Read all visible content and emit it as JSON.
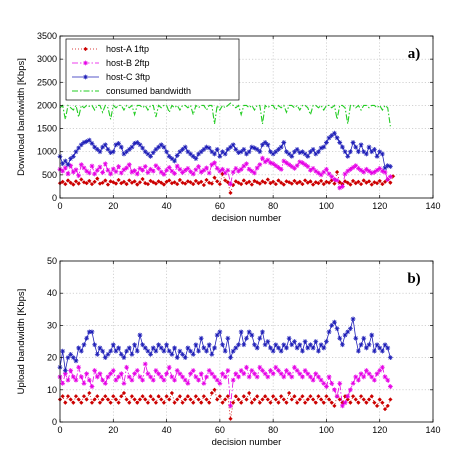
{
  "chart_data": [
    {
      "type": "line",
      "panel_label": "a)",
      "xlabel": "decision number",
      "ylabel": "Download bandwidth [Kbps]",
      "xlim": [
        0,
        140
      ],
      "ylim": [
        0,
        3500
      ],
      "xticks": [
        0,
        20,
        40,
        60,
        80,
        100,
        120,
        140
      ],
      "yticks": [
        0,
        500,
        1000,
        1500,
        2000,
        2500,
        3000,
        3500
      ],
      "grid": true,
      "legend_position": "top-left",
      "series": [
        {
          "name": "host-A 1ftp",
          "color": "#cc0000",
          "style": "dotted",
          "marker": "diamond",
          "values": [
            320,
            350,
            300,
            380,
            330,
            290,
            360,
            310,
            400,
            340,
            320,
            370,
            300,
            350,
            420,
            310,
            330,
            380,
            290,
            360,
            340,
            310,
            390,
            320,
            350,
            300,
            380,
            330,
            360,
            290,
            340,
            410,
            320,
            300,
            370,
            340,
            310,
            360,
            330,
            290,
            350,
            380,
            320,
            340,
            300,
            390,
            330,
            310,
            360,
            340,
            300,
            370,
            320,
            350,
            280,
            390,
            330,
            310,
            440,
            360,
            300,
            520,
            380,
            340,
            110,
            280,
            360,
            330,
            300,
            380,
            320,
            350,
            290,
            370,
            340,
            310,
            360,
            330,
            400,
            320,
            350,
            300,
            380,
            330,
            290,
            360,
            340,
            310,
            370,
            320,
            350,
            300,
            380,
            330,
            360,
            290,
            340,
            320,
            370,
            300,
            350,
            330,
            380,
            310,
            560,
            340,
            300,
            360,
            330,
            290,
            370,
            320,
            350,
            300,
            380,
            330,
            360,
            290,
            340,
            320,
            370,
            300,
            350,
            400,
            330,
            470
          ]
        },
        {
          "name": "host-B 2ftp",
          "color": "#e600e6",
          "style": "dashdot",
          "marker": "star",
          "values": [
            620,
            580,
            650,
            520,
            700,
            560,
            610,
            480,
            720,
            650,
            580,
            540,
            690,
            520,
            600,
            670,
            550,
            740,
            600,
            520,
            630,
            570,
            680,
            540,
            610,
            650,
            720,
            560,
            590,
            520,
            640,
            600,
            680,
            550,
            620,
            580,
            700,
            640,
            560,
            510,
            600,
            660,
            580,
            530,
            690,
            620,
            550,
            600,
            640,
            570,
            520,
            610,
            680,
            560,
            600,
            650,
            540,
            720,
            760,
            640,
            580,
            620,
            540,
            600,
            300,
            560,
            640,
            580,
            620,
            690,
            740,
            620,
            580,
            540,
            650,
            720,
            860,
            780,
            820,
            760,
            740,
            700,
            660,
            620,
            800,
            760,
            720,
            680,
            640,
            700,
            780,
            760,
            720,
            680,
            600,
            640,
            580,
            540,
            500,
            560,
            620,
            520,
            460,
            400,
            380,
            220,
            250,
            520,
            580,
            620,
            660,
            700,
            640,
            600,
            560,
            620,
            580,
            540,
            560,
            600,
            640,
            580,
            560,
            400,
            460
          ]
        },
        {
          "name": "host-C 3ftp",
          "color": "#1f1fb8",
          "style": "solid",
          "marker": "star",
          "values": [
            900,
            740,
            800,
            720,
            850,
            900,
            1000,
            1080,
            1150,
            1200,
            1220,
            1250,
            1180,
            1100,
            1050,
            1000,
            1100,
            1150,
            1050,
            980,
            1000,
            1150,
            1180,
            1100,
            950,
            1000,
            1050,
            1100,
            1180,
            1200,
            1150,
            1080,
            1000,
            950,
            900,
            980,
            1050,
            1100,
            1150,
            1100,
            1000,
            900,
            850,
            800,
            920,
            1000,
            1050,
            1100,
            1000,
            950,
            900,
            850,
            950,
            1000,
            1050,
            1100,
            1080,
            1000,
            950,
            1050,
            900,
            1000,
            950,
            1050,
            1100,
            1150,
            1050,
            980,
            1000,
            1050,
            950,
            1000,
            1100,
            1080,
            1050,
            1000,
            1150,
            1200,
            1150,
            1000,
            950,
            1000,
            1050,
            1100,
            1200,
            1000,
            950,
            900,
            1000,
            1050,
            980,
            1000,
            950,
            900,
            1000,
            1050,
            950,
            1000,
            1080,
            1100,
            1200,
            1300,
            1350,
            1400,
            1300,
            1200,
            1100,
            1000,
            900,
            1000,
            1200,
            1100,
            1000,
            1150,
            1000,
            950,
            1100,
            1000,
            1050,
            900,
            1000,
            950,
            650,
            700,
            680
          ]
        },
        {
          "name": "consumed bandwidth",
          "color": "#22cc22",
          "style": "dashdot",
          "marker": "none",
          "values": [
            1950,
            2000,
            1700,
            2000,
            1950,
            1900,
            2000,
            1750,
            2000,
            1950,
            2000,
            1980,
            2000,
            1900,
            2000,
            2000,
            1850,
            2000,
            1950,
            1700,
            2000,
            1950,
            2000,
            2000,
            1900,
            2000,
            1950,
            2000,
            1800,
            2000,
            2000,
            1950,
            2000,
            1900,
            2000,
            2000,
            1750,
            2000,
            1950,
            2000,
            2000,
            1850,
            2000,
            1950,
            2000,
            1900,
            2000,
            2000,
            1950,
            2000,
            1800,
            2000,
            1950,
            2000,
            2000,
            1900,
            2000,
            2000,
            1600,
            2000,
            1900,
            2000,
            1950,
            2000,
            2050,
            2000,
            1950,
            2000,
            1800,
            2000,
            2000,
            1950,
            2000,
            1900,
            2000,
            2000,
            1600,
            2000,
            1950,
            2000,
            2000,
            1900,
            2000,
            1950,
            2000,
            1850,
            2000,
            2000,
            1950,
            2000,
            1900,
            2000,
            2000,
            1950,
            1800,
            2000,
            2000,
            1950,
            2000,
            1900,
            2000,
            2000,
            1950,
            2000,
            1700,
            2000,
            2000,
            1950,
            1600,
            2000,
            2000,
            1950,
            2000,
            1900,
            2000,
            2000,
            1950,
            2000,
            2000,
            1950,
            2000,
            1900,
            2000,
            1950,
            1550
          ]
        }
      ]
    },
    {
      "type": "line",
      "panel_label": "b)",
      "xlabel": "decision number",
      "ylabel": "Upload bandwidth [Kbps]",
      "xlim": [
        0,
        140
      ],
      "ylim": [
        0,
        50
      ],
      "xticks": [
        0,
        20,
        40,
        60,
        80,
        100,
        120,
        140
      ],
      "yticks": [
        0,
        10,
        20,
        30,
        40,
        50
      ],
      "grid": true,
      "legend_position": "none",
      "series": [
        {
          "name": "host-A 1ftp",
          "color": "#cc0000",
          "style": "dotted",
          "marker": "diamond",
          "values": [
            7,
            8,
            6,
            8,
            7,
            6,
            8,
            7,
            6,
            8,
            7,
            9,
            6,
            7,
            8,
            6,
            7,
            8,
            7,
            6,
            8,
            7,
            6,
            8,
            9,
            7,
            6,
            8,
            7,
            6,
            7,
            8,
            7,
            6,
            8,
            7,
            6,
            8,
            7,
            6,
            8,
            7,
            9,
            6,
            7,
            8,
            6,
            7,
            8,
            7,
            6,
            8,
            7,
            6,
            8,
            7,
            6,
            9,
            10,
            7,
            8,
            6,
            7,
            8,
            1,
            6,
            8,
            7,
            6,
            8,
            7,
            9,
            6,
            7,
            8,
            6,
            7,
            8,
            7,
            6,
            8,
            7,
            6,
            8,
            7,
            6,
            9,
            7,
            8,
            6,
            7,
            8,
            6,
            7,
            8,
            7,
            6,
            8,
            7,
            6,
            8,
            7,
            6,
            5,
            8,
            7,
            6,
            8,
            7,
            6,
            8,
            7,
            6,
            8,
            7,
            6,
            7,
            8,
            6,
            5,
            7,
            6,
            4,
            5,
            7
          ]
        },
        {
          "name": "host-B 2ftp",
          "color": "#e600e6",
          "style": "dashdot",
          "marker": "star",
          "values": [
            14,
            12,
            15,
            13,
            16,
            14,
            13,
            17,
            14,
            12,
            15,
            13,
            11,
            16,
            14,
            15,
            13,
            12,
            14,
            15,
            16,
            13,
            14,
            15,
            12,
            17,
            14,
            13,
            15,
            16,
            14,
            13,
            18,
            15,
            14,
            13,
            16,
            15,
            14,
            13,
            15,
            17,
            14,
            13,
            16,
            15,
            14,
            13,
            12,
            15,
            16,
            14,
            13,
            15,
            12,
            14,
            16,
            15,
            14,
            13,
            12,
            15,
            14,
            16,
            5,
            13,
            15,
            14,
            16,
            15,
            17,
            14,
            16,
            15,
            14,
            17,
            16,
            15,
            14,
            16,
            15,
            17,
            16,
            15,
            14,
            16,
            15,
            14,
            17,
            16,
            15,
            14,
            16,
            15,
            14,
            13,
            15,
            14,
            13,
            12,
            11,
            14,
            12,
            10,
            8,
            12,
            5,
            6,
            8,
            10,
            12,
            14,
            13,
            15,
            14,
            16,
            15,
            14,
            13,
            15,
            16,
            17,
            14,
            13,
            11
          ]
        },
        {
          "name": "host-C 3ftp",
          "color": "#1f1fb8",
          "style": "solid",
          "marker": "star",
          "values": [
            17,
            22,
            16,
            20,
            21,
            20,
            19,
            23,
            22,
            24,
            26,
            28,
            28,
            24,
            21,
            23,
            22,
            20,
            21,
            22,
            24,
            22,
            23,
            21,
            20,
            22,
            23,
            21,
            24,
            22,
            27,
            24,
            23,
            22,
            21,
            23,
            22,
            24,
            23,
            22,
            24,
            22,
            21,
            23,
            20,
            22,
            21,
            20,
            23,
            22,
            21,
            24,
            22,
            26,
            23,
            22,
            24,
            21,
            23,
            27,
            28,
            24,
            22,
            26,
            20,
            22,
            23,
            24,
            28,
            24,
            26,
            28,
            27,
            24,
            23,
            26,
            28,
            24,
            25,
            23,
            22,
            24,
            23,
            22,
            24,
            23,
            26,
            24,
            25,
            23,
            24,
            22,
            25,
            23,
            24,
            23,
            25,
            22,
            24,
            23,
            25,
            28,
            30,
            31,
            29,
            26,
            24,
            27,
            28,
            29,
            32,
            26,
            22,
            24,
            26,
            23,
            24,
            27,
            22,
            24,
            23,
            22,
            24,
            23,
            20
          ]
        }
      ]
    }
  ]
}
